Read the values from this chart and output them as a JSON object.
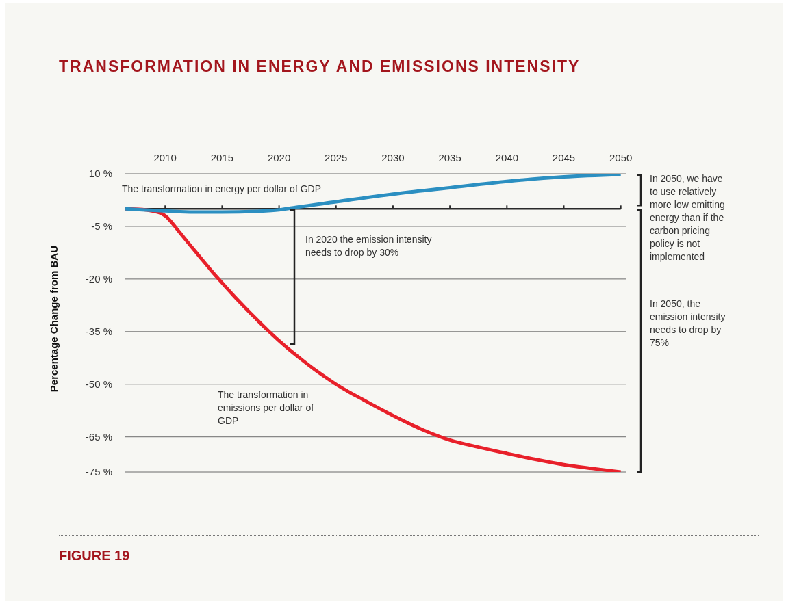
{
  "chart_data": {
    "type": "line",
    "title": "TRANSFORMATION IN ENERGY AND EMISSIONS INTENSITY",
    "ylabel": "Percentage Change from BAU",
    "xlim": [
      2006.5,
      2050.5
    ],
    "xticks": [
      2010,
      2015,
      2020,
      2025,
      2030,
      2035,
      2040,
      2045,
      2050
    ],
    "ylim": [
      -75,
      10
    ],
    "yticks": [
      {
        "value": 10,
        "label": "10 %"
      },
      {
        "value": -5,
        "label": "-5 %"
      },
      {
        "value": -20,
        "label": "-20 %"
      },
      {
        "value": -35,
        "label": "-35 %"
      },
      {
        "value": -50,
        "label": "-50 %"
      },
      {
        "value": -65,
        "label": "-65 %"
      },
      {
        "value": -75,
        "label": "-75 %"
      }
    ],
    "grid": "y",
    "series": [
      {
        "name": "The transformation in energy per dollar of GDP",
        "color": "#2b8fc1",
        "x": [
          2006.5,
          2008,
          2010,
          2012.5,
          2015,
          2018,
          2020,
          2021,
          2025,
          2030,
          2035,
          2040,
          2045,
          2050
        ],
        "values": [
          0,
          -0.3,
          -0.6,
          -0.9,
          -0.9,
          -0.7,
          -0.3,
          0.2,
          2.0,
          4.2,
          6.0,
          7.8,
          9.1,
          9.8
        ]
      },
      {
        "name": "The transformation in emissions per dollar of GDP",
        "color": "#e8202a",
        "x": [
          2006.5,
          2008,
          2009,
          2009.5,
          2010,
          2010.5,
          2011,
          2012,
          2013,
          2014,
          2015,
          2016,
          2017,
          2018,
          2019,
          2020,
          2021,
          2022,
          2023,
          2024,
          2025,
          2027.5,
          2030,
          2032.5,
          2035,
          2037.5,
          2040,
          2042.5,
          2045,
          2047.5,
          2050
        ],
        "values": [
          0,
          -0.2,
          -0.7,
          -1.1,
          -2.0,
          -3.6,
          -5.6,
          -9.6,
          -13.5,
          -17.4,
          -21.1,
          -24.7,
          -28.1,
          -31.4,
          -34.6,
          -37.6,
          -40.4,
          -43.0,
          -45.5,
          -47.8,
          -50.0,
          -54.6,
          -58.9,
          -62.8,
          -65.9,
          -67.9,
          -69.7,
          -71.4,
          -72.9,
          -74.0,
          -75
        ]
      }
    ],
    "annotations": [
      "In 2020 the emission intensity needs to drop by 30%",
      "In 2050, we have to use relatively more low emitting energy than if the carbon pricing policy is not implemented",
      "In 2050, the emission intensity needs to drop by 75%",
      "FIGURE 19"
    ]
  }
}
